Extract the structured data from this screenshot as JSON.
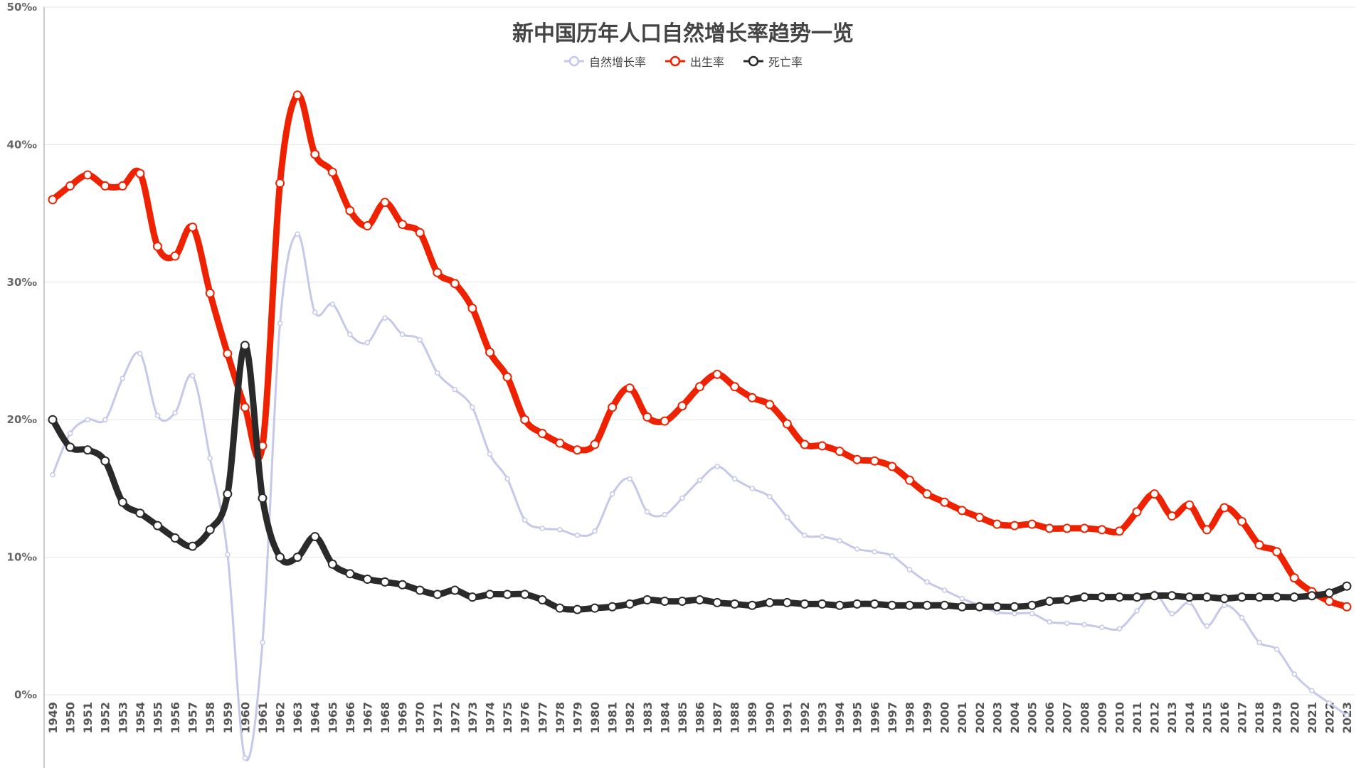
{
  "chart_data": {
    "type": "line",
    "title": "新中国历年人口自然增长率趋势一览",
    "xlabel": "",
    "ylabel": "",
    "ylim": [
      0,
      50
    ],
    "y_ticks": [
      "0‰",
      "10‰",
      "20‰",
      "30‰",
      "40‰",
      "50‰"
    ],
    "grid": true,
    "legend_position": "top-center",
    "x": [
      "1949",
      "1950",
      "1951",
      "1952",
      "1953",
      "1954",
      "1955",
      "1956",
      "1957",
      "1958",
      "1959",
      "1960",
      "1961",
      "1962",
      "1963",
      "1964",
      "1965",
      "1966",
      "1967",
      "1968",
      "1969",
      "1970",
      "1971",
      "1972",
      "1973",
      "1974",
      "1975",
      "1976",
      "1977",
      "1978",
      "1979",
      "1980",
      "1981",
      "1982",
      "1983",
      "1984",
      "1985",
      "1986",
      "1987",
      "1988",
      "1989",
      "1990",
      "1991",
      "1992",
      "1993",
      "1994",
      "1995",
      "1996",
      "1997",
      "1998",
      "1999",
      "2000",
      "2001",
      "2002",
      "2003",
      "2004",
      "2005",
      "2006",
      "2007",
      "2008",
      "2009",
      "2010",
      "2011",
      "2012",
      "2013",
      "2014",
      "2015",
      "2016",
      "2017",
      "2018",
      "2019",
      "2020",
      "2021",
      "2022",
      "2023"
    ],
    "series": [
      {
        "name": "自然增长率",
        "color": "#c5c8ea",
        "values": [
          16.0,
          19.0,
          20.0,
          20.0,
          23.0,
          24.8,
          20.3,
          20.5,
          23.2,
          17.2,
          10.2,
          -4.6,
          3.8,
          27.0,
          33.5,
          27.8,
          28.4,
          26.2,
          25.6,
          27.4,
          26.2,
          25.8,
          23.4,
          22.2,
          20.9,
          17.5,
          15.7,
          12.7,
          12.1,
          12.0,
          11.6,
          11.9,
          14.6,
          15.7,
          13.3,
          13.1,
          14.3,
          15.6,
          16.6,
          15.7,
          15.0,
          14.4,
          12.9,
          11.6,
          11.5,
          11.2,
          10.6,
          10.4,
          10.1,
          9.1,
          8.2,
          7.6,
          7.0,
          6.5,
          6.0,
          5.9,
          5.9,
          5.3,
          5.2,
          5.1,
          4.9,
          4.8,
          6.1,
          7.4,
          5.9,
          6.7,
          5.0,
          6.5,
          5.6,
          3.8,
          3.3,
          1.5,
          0.3,
          -0.6,
          -1.5
        ]
      },
      {
        "name": "出生率",
        "color": "#ee2200",
        "values": [
          36.0,
          37.0,
          37.8,
          37.0,
          37.0,
          37.9,
          32.6,
          31.9,
          34.0,
          29.2,
          24.8,
          20.9,
          18.1,
          37.2,
          43.6,
          39.3,
          38.0,
          35.2,
          34.1,
          35.8,
          34.2,
          33.6,
          30.7,
          29.9,
          28.1,
          24.9,
          23.1,
          20.0,
          19.0,
          18.3,
          17.8,
          18.2,
          20.9,
          22.3,
          20.2,
          19.9,
          21.0,
          22.4,
          23.3,
          22.4,
          21.6,
          21.1,
          19.7,
          18.2,
          18.1,
          17.7,
          17.1,
          17.0,
          16.6,
          15.6,
          14.6,
          14.0,
          13.4,
          12.9,
          12.4,
          12.3,
          12.4,
          12.1,
          12.1,
          12.1,
          12.0,
          11.9,
          13.3,
          14.6,
          13.0,
          13.8,
          12.0,
          13.6,
          12.6,
          10.9,
          10.4,
          8.5,
          7.5,
          6.8,
          6.4
        ]
      },
      {
        "name": "死亡率",
        "color": "#2a2a2a",
        "values": [
          20.0,
          18.0,
          17.8,
          17.0,
          14.0,
          13.2,
          12.3,
          11.4,
          10.8,
          12.0,
          14.6,
          25.4,
          14.3,
          10.0,
          10.0,
          11.5,
          9.5,
          8.8,
          8.4,
          8.2,
          8.0,
          7.6,
          7.3,
          7.6,
          7.1,
          7.3,
          7.3,
          7.3,
          6.9,
          6.3,
          6.2,
          6.3,
          6.4,
          6.6,
          6.9,
          6.8,
          6.8,
          6.9,
          6.7,
          6.6,
          6.5,
          6.7,
          6.7,
          6.6,
          6.6,
          6.5,
          6.6,
          6.6,
          6.5,
          6.5,
          6.5,
          6.5,
          6.4,
          6.4,
          6.4,
          6.4,
          6.5,
          6.8,
          6.9,
          7.1,
          7.1,
          7.1,
          7.1,
          7.2,
          7.2,
          7.1,
          7.1,
          7.0,
          7.1,
          7.1,
          7.1,
          7.1,
          7.2,
          7.4,
          7.9
        ]
      }
    ]
  }
}
